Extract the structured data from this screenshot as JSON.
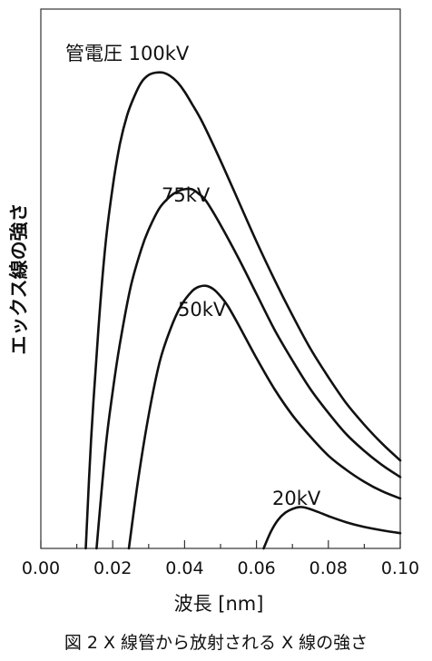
{
  "chart_data": {
    "type": "line",
    "title": "",
    "caption": "図 2 X 線管から放射される X 線の強さ",
    "xlabel": "波長 [nm]",
    "ylabel": "エックス線の強さ",
    "xlim": [
      0.0,
      0.1
    ],
    "ylim": [
      0,
      1
    ],
    "y_ticks_shown": false,
    "grid": false,
    "legend": "none (curves labeled directly)",
    "x_ticks": [
      "0.00",
      "0.02",
      "0.04",
      "0.06",
      "0.08",
      "0.10"
    ],
    "series": [
      {
        "name": "管電圧 100kV",
        "x": [
          0.0125,
          0.014,
          0.016,
          0.018,
          0.02,
          0.022,
          0.024,
          0.026,
          0.028,
          0.03,
          0.032,
          0.034,
          0.036,
          0.038,
          0.04,
          0.042,
          0.045,
          0.05,
          0.055,
          0.06,
          0.065,
          0.07,
          0.075,
          0.08,
          0.085,
          0.09,
          0.095,
          0.1
        ],
        "values": [
          0.0,
          0.23,
          0.46,
          0.64,
          0.76,
          0.85,
          0.91,
          0.95,
          0.98,
          0.995,
          1.0,
          1.0,
          0.993,
          0.98,
          0.96,
          0.935,
          0.895,
          0.815,
          0.73,
          0.645,
          0.565,
          0.49,
          0.42,
          0.36,
          0.305,
          0.26,
          0.22,
          0.185
        ]
      },
      {
        "name": "75kV",
        "x": [
          0.0155,
          0.018,
          0.02,
          0.022,
          0.025,
          0.028,
          0.03,
          0.033,
          0.036,
          0.038,
          0.04,
          0.042,
          0.044,
          0.046,
          0.05,
          0.055,
          0.06,
          0.065,
          0.07,
          0.075,
          0.08,
          0.085,
          0.09,
          0.095,
          0.1
        ],
        "values": [
          0.0,
          0.21,
          0.33,
          0.43,
          0.55,
          0.63,
          0.67,
          0.715,
          0.74,
          0.75,
          0.755,
          0.755,
          0.745,
          0.73,
          0.68,
          0.61,
          0.535,
          0.46,
          0.395,
          0.335,
          0.285,
          0.24,
          0.205,
          0.175,
          0.15
        ]
      },
      {
        "name": "50kV",
        "x": [
          0.0245,
          0.027,
          0.03,
          0.033,
          0.036,
          0.039,
          0.042,
          0.044,
          0.046,
          0.048,
          0.05,
          0.052,
          0.055,
          0.06,
          0.065,
          0.07,
          0.075,
          0.08,
          0.085,
          0.09,
          0.095,
          0.1
        ],
        "values": [
          0.0,
          0.14,
          0.28,
          0.39,
          0.46,
          0.51,
          0.54,
          0.55,
          0.552,
          0.545,
          0.53,
          0.51,
          0.47,
          0.4,
          0.335,
          0.28,
          0.235,
          0.195,
          0.165,
          0.14,
          0.12,
          0.105
        ]
      },
      {
        "name": "20kV",
        "x": [
          0.062,
          0.064,
          0.066,
          0.068,
          0.07,
          0.072,
          0.074,
          0.077,
          0.08,
          0.085,
          0.09,
          0.095,
          0.1
        ],
        "values": [
          0.0,
          0.035,
          0.06,
          0.075,
          0.083,
          0.087,
          0.085,
          0.077,
          0.068,
          0.055,
          0.045,
          0.038,
          0.032
        ]
      }
    ]
  }
}
